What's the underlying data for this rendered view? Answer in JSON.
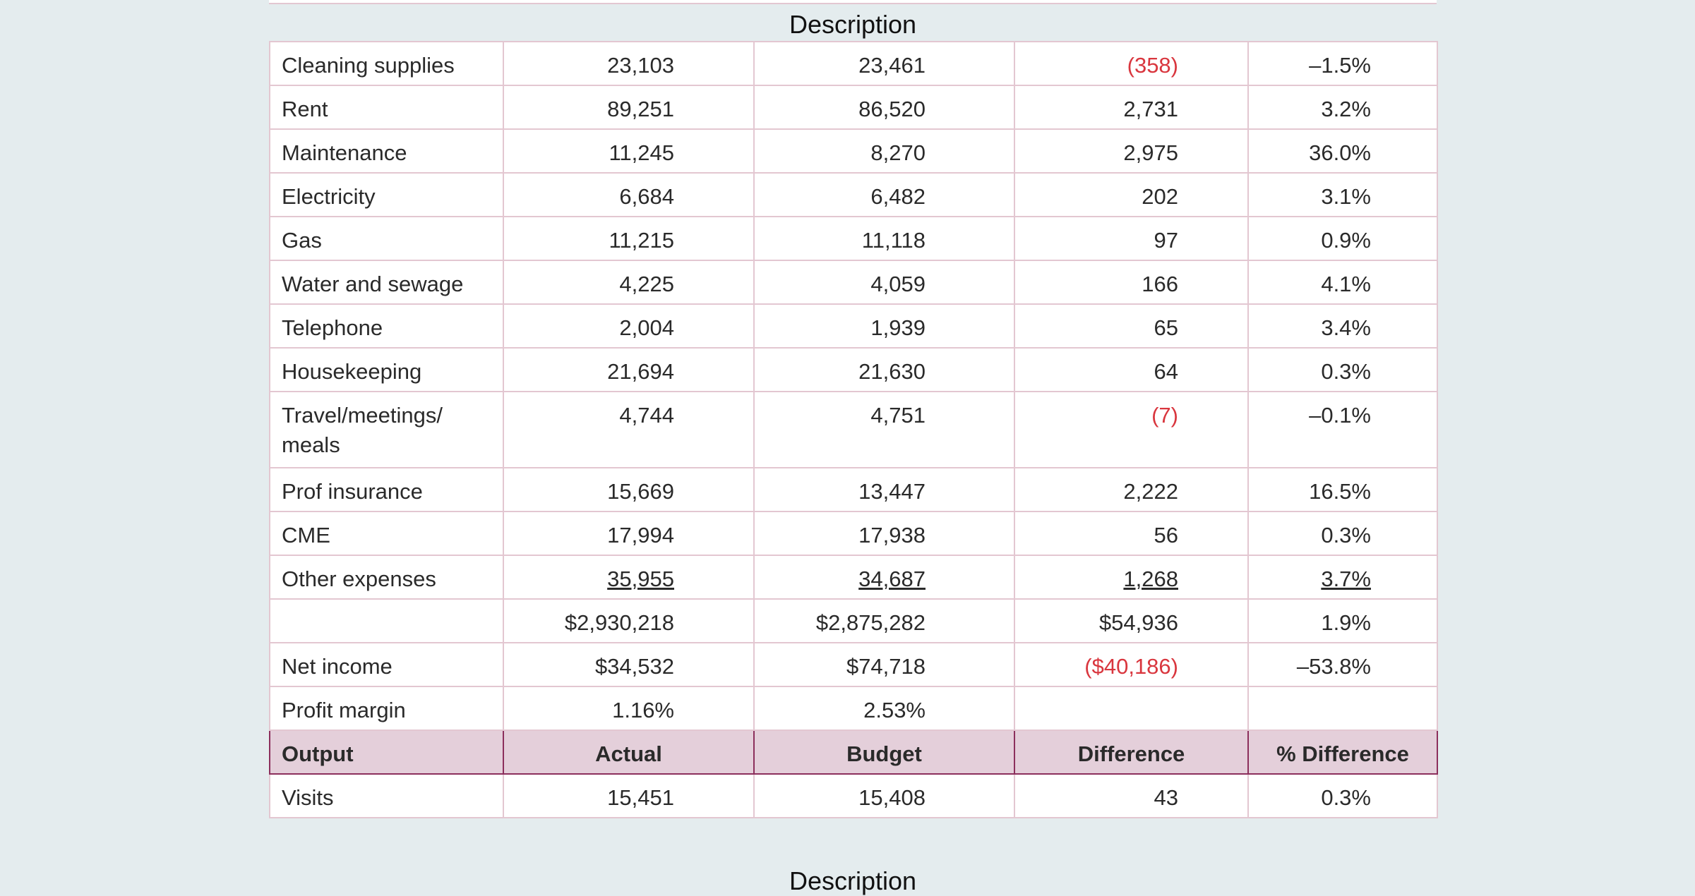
{
  "caption_top": "Description",
  "expenses": {
    "rows": [
      [
        "Cleaning supplies",
        "23,103",
        "23,461",
        "(358)",
        "–1.5%"
      ],
      [
        "Rent",
        "89,251",
        "86,520",
        "2,731",
        "3.2%"
      ],
      [
        "Maintenance",
        "11,245",
        "8,270",
        "2,975",
        "36.0%"
      ],
      [
        "Electricity",
        "6,684",
        "6,482",
        "202",
        "3.1%"
      ],
      [
        "Gas",
        "11,215",
        "11,118",
        "97",
        "0.9%"
      ],
      [
        "Water and sewage",
        "4,225",
        "4,059",
        "166",
        "4.1%"
      ],
      [
        "Telephone",
        "2,004",
        "1,939",
        "65",
        "3.4%"
      ],
      [
        "Housekeeping",
        "21,694",
        "21,630",
        "64",
        "0.3%"
      ],
      [
        "Travel/meetings/ meals",
        "4,744",
        "4,751",
        "(7)",
        "–0.1%"
      ],
      [
        "Prof insurance",
        "15,669",
        "13,447",
        "2,222",
        "16.5%"
      ],
      [
        "CME",
        "17,994",
        "17,938",
        "56",
        "0.3%"
      ],
      [
        "Other expenses",
        "35,955",
        "34,687",
        "1,268",
        "3.7%"
      ],
      [
        null,
        "$2,930,218",
        "$2,875,282",
        "$54,936",
        "1.9%"
      ],
      [
        "Net income",
        "$34,532",
        "$74,718",
        "($40,186)",
        "–53.8%"
      ],
      [
        "Profit margin",
        "1.16%",
        "2.53%",
        null,
        null
      ]
    ]
  },
  "output": {
    "header": [
      "Output",
      "Actual",
      "Budget",
      "Difference",
      "% Difference"
    ],
    "rows": [
      [
        "Visits",
        "15,451",
        "15,408",
        "43",
        "0.3%"
      ]
    ]
  },
  "caption_bottom": "Description"
}
